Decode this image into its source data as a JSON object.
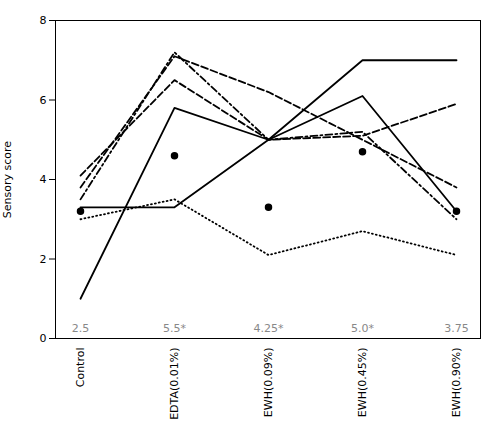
{
  "chart_data": {
    "type": "line",
    "categories": [
      "Control",
      "EDTA(0.01%)",
      "EWH(0.09%)",
      "EWH(0.45%)",
      "EWH(0.90%)"
    ],
    "ylabel": "Sensory score",
    "ylim": [
      0,
      8
    ],
    "yticks": [
      0,
      2,
      4,
      6,
      8
    ],
    "grid": false,
    "series": [
      {
        "color": "black",
        "line_style": "solid",
        "values": [
          1.0,
          5.8,
          5.0,
          6.1,
          3.2
        ]
      },
      {
        "color": "black",
        "line_style": "solid",
        "values": [
          3.3,
          3.3,
          5.0,
          7.0,
          7.0
        ]
      },
      {
        "color": "black",
        "line_style": "dashed",
        "values": [
          4.1,
          6.5,
          5.0,
          5.1,
          5.9
        ]
      },
      {
        "color": "black",
        "line_style": "dashed",
        "values": [
          3.8,
          7.1,
          6.2,
          5.0,
          3.8
        ]
      },
      {
        "color": "black",
        "line_style": "dashdot",
        "values": [
          3.5,
          7.2,
          5.0,
          5.2,
          3.0
        ]
      },
      {
        "color": "black",
        "line_style": "none",
        "marker": "o",
        "values": [
          3.2,
          4.6,
          3.3,
          4.7,
          3.2
        ]
      },
      {
        "color": "black",
        "line_style": "dotted",
        "values": [
          3.0,
          3.5,
          2.1,
          2.7,
          2.1
        ]
      }
    ],
    "annotations": [
      {
        "x": "Control",
        "text": "2.5",
        "color": "#888888"
      },
      {
        "x": "EDTA(0.01%)",
        "text": "5.5*",
        "color": "#888888"
      },
      {
        "x": "EWH(0.09%)",
        "text": "4.25*",
        "color": "#888888"
      },
      {
        "x": "EWH(0.45%)",
        "text": "5.0*",
        "color": "#888888"
      },
      {
        "x": "EWH(0.90%)",
        "text": "3.75",
        "color": "#888888"
      }
    ]
  }
}
